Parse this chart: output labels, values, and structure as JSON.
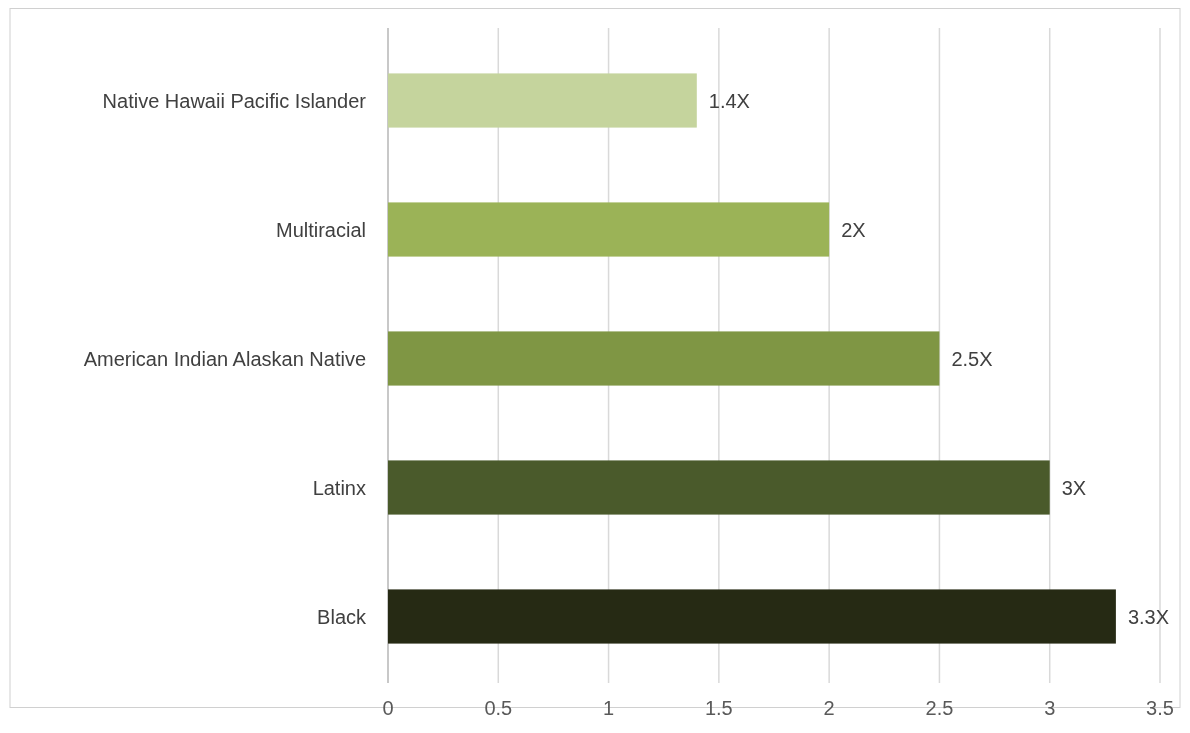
{
  "chart_data": {
    "type": "bar",
    "orientation": "horizontal",
    "categories": [
      "Native Hawaii Pacific Islander",
      "Multiracial",
      "American Indian Alaskan Native",
      "Latinx",
      "Black"
    ],
    "values": [
      1.4,
      2,
      2.5,
      3,
      3.3
    ],
    "colors": [
      "#c5d49d",
      "#9bb357",
      "#7f9644",
      "#4a5a2b",
      "#262a14"
    ],
    "value_labels": [
      "1.4X",
      "2X",
      "2.5X",
      "3X",
      "3.3X"
    ],
    "xlim": [
      0,
      3.5
    ],
    "xticks": [
      0,
      0.5,
      1,
      1.5,
      2,
      2.5,
      3,
      3.5
    ],
    "grid": "x"
  }
}
